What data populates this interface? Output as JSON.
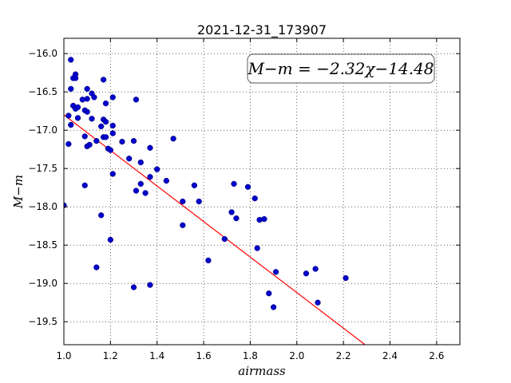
{
  "chart_data": {
    "type": "scatter",
    "title": "2021-12-31_173907",
    "xlabel": "airmass",
    "ylabel": "M−m",
    "xlim": [
      1.0,
      2.7
    ],
    "ylim": [
      -19.8,
      -15.8
    ],
    "x_ticks": [
      1.0,
      1.2,
      1.4,
      1.6,
      1.8,
      2.0,
      2.2,
      2.4,
      2.6
    ],
    "y_ticks": [
      -16.0,
      -16.5,
      -17.0,
      -17.5,
      -18.0,
      -18.5,
      -19.0,
      -19.5
    ],
    "x_tick_labels": [
      "1.0",
      "1.2",
      "1.4",
      "1.6",
      "1.8",
      "2.0",
      "2.2",
      "2.4",
      "2.6"
    ],
    "y_tick_labels": [
      "−16.0",
      "−16.5",
      "−17.0",
      "−17.5",
      "−18.0",
      "−18.5",
      "−19.0",
      "−19.5"
    ],
    "grid": true,
    "annotation": "M−m = −2.32χ−14.48",
    "fit": {
      "slope": -2.32,
      "intercept": -14.48,
      "x_range": [
        1.0,
        2.3
      ],
      "color": "#ff0000"
    },
    "point_color": "#0000cc",
    "points": [
      [
        1.0,
        -17.98
      ],
      [
        1.02,
        -16.81
      ],
      [
        1.02,
        -17.18
      ],
      [
        1.03,
        -16.46
      ],
      [
        1.03,
        -16.08
      ],
      [
        1.03,
        -16.93
      ],
      [
        1.04,
        -16.68
      ],
      [
        1.04,
        -16.32
      ],
      [
        1.05,
        -16.27
      ],
      [
        1.05,
        -16.32
      ],
      [
        1.05,
        -16.72
      ],
      [
        1.06,
        -16.7
      ],
      [
        1.06,
        -16.84
      ],
      [
        1.08,
        -16.6
      ],
      [
        1.09,
        -16.74
      ],
      [
        1.09,
        -17.08
      ],
      [
        1.09,
        -17.72
      ],
      [
        1.1,
        -16.46
      ],
      [
        1.1,
        -16.76
      ],
      [
        1.1,
        -17.21
      ],
      [
        1.1,
        -16.59
      ],
      [
        1.11,
        -17.19
      ],
      [
        1.12,
        -16.85
      ],
      [
        1.12,
        -16.52
      ],
      [
        1.13,
        -16.57
      ],
      [
        1.14,
        -17.14
      ],
      [
        1.14,
        -18.79
      ],
      [
        1.16,
        -18.11
      ],
      [
        1.16,
        -16.95
      ],
      [
        1.17,
        -16.34
      ],
      [
        1.17,
        -16.86
      ],
      [
        1.17,
        -17.09
      ],
      [
        1.18,
        -16.89
      ],
      [
        1.18,
        -16.65
      ],
      [
        1.18,
        -17.09
      ],
      [
        1.19,
        -17.24
      ],
      [
        1.2,
        -17.26
      ],
      [
        1.2,
        -18.43
      ],
      [
        1.21,
        -16.57
      ],
      [
        1.21,
        -16.94
      ],
      [
        1.21,
        -17.04
      ],
      [
        1.21,
        -17.57
      ],
      [
        1.25,
        -17.15
      ],
      [
        1.28,
        -17.37
      ],
      [
        1.3,
        -17.14
      ],
      [
        1.3,
        -19.05
      ],
      [
        1.31,
        -17.79
      ],
      [
        1.31,
        -16.6
      ],
      [
        1.33,
        -17.42
      ],
      [
        1.33,
        -17.7
      ],
      [
        1.35,
        -17.82
      ],
      [
        1.37,
        -19.02
      ],
      [
        1.37,
        -17.23
      ],
      [
        1.37,
        -17.61
      ],
      [
        1.4,
        -17.51
      ],
      [
        1.44,
        -17.66
      ],
      [
        1.47,
        -17.11
      ],
      [
        1.51,
        -17.93
      ],
      [
        1.51,
        -18.24
      ],
      [
        1.56,
        -17.72
      ],
      [
        1.58,
        -17.93
      ],
      [
        1.62,
        -18.7
      ],
      [
        1.69,
        -18.42
      ],
      [
        1.72,
        -18.07
      ],
      [
        1.73,
        -17.7
      ],
      [
        1.74,
        -18.15
      ],
      [
        1.79,
        -17.74
      ],
      [
        1.82,
        -17.89
      ],
      [
        1.83,
        -18.54
      ],
      [
        1.84,
        -18.17
      ],
      [
        1.86,
        -18.16
      ],
      [
        1.88,
        -19.13
      ],
      [
        1.9,
        -19.31
      ],
      [
        1.91,
        -18.85
      ],
      [
        2.04,
        -18.87
      ],
      [
        2.08,
        -18.81
      ],
      [
        2.09,
        -19.25
      ],
      [
        2.21,
        -18.93
      ]
    ]
  }
}
